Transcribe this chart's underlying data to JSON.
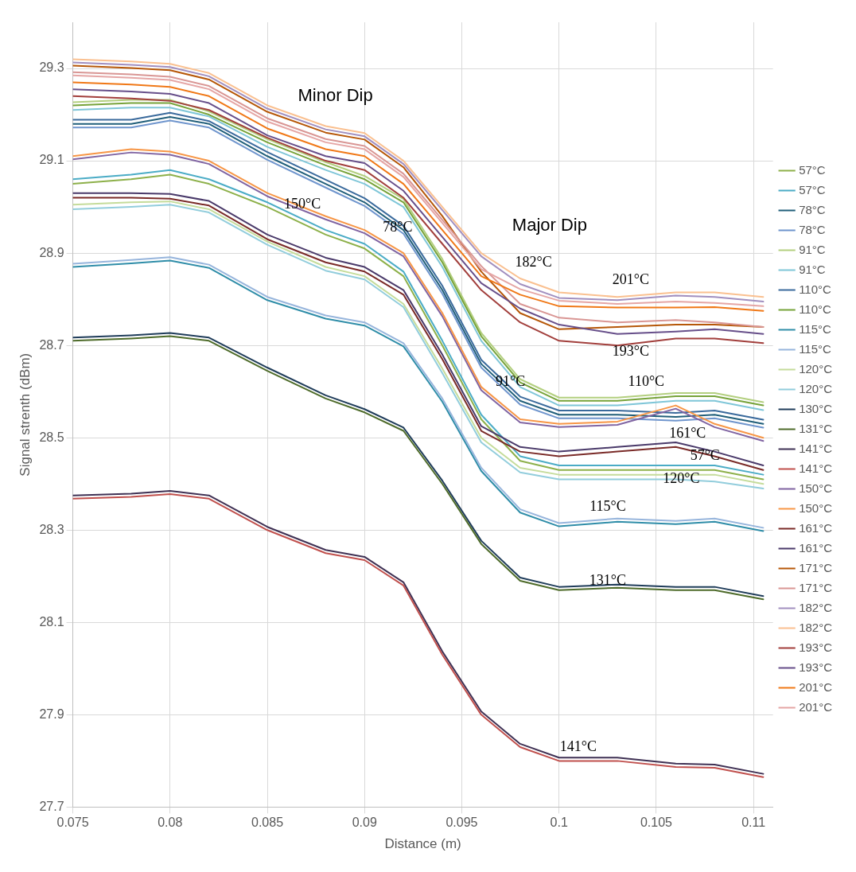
{
  "chart_data": {
    "type": "line",
    "xlabel": "Distance (m)",
    "ylabel": "Signal strenth (dBm)",
    "x": [
      0.075,
      0.078,
      0.08,
      0.082,
      0.085,
      0.088,
      0.09,
      0.092,
      0.094,
      0.096,
      0.098,
      0.1,
      0.103,
      0.106,
      0.108,
      0.1105
    ],
    "xlim": [
      0.075,
      0.111
    ],
    "xticks": [
      0.075,
      0.08,
      0.085,
      0.09,
      0.095,
      0.1,
      0.105,
      0.11
    ],
    "ylim": [
      27.7,
      29.4
    ],
    "yticks": [
      27.7,
      27.9,
      28.1,
      28.3,
      28.5,
      28.7,
      28.9,
      29.1,
      29.3
    ],
    "grid": true,
    "legend": "right",
    "marker": "none",
    "line_style": "solid",
    "series": [
      {
        "name": "57°C",
        "color": "#8db04a",
        "values": [
          29.05,
          29.06,
          29.07,
          29.05,
          29.0,
          28.94,
          28.91,
          28.85,
          28.7,
          28.54,
          28.45,
          28.43,
          28.43,
          28.43,
          28.43,
          28.41
        ]
      },
      {
        "name": "57°C",
        "color": "#4bacc6",
        "values": [
          29.06,
          29.07,
          29.08,
          29.06,
          29.01,
          28.95,
          28.92,
          28.86,
          28.71,
          28.55,
          28.46,
          28.44,
          28.44,
          28.44,
          28.44,
          28.42
        ]
      },
      {
        "name": "78°C",
        "color": "#215f7a",
        "values": [
          29.18,
          29.18,
          29.195,
          29.18,
          29.11,
          29.05,
          29.01,
          28.95,
          28.82,
          28.66,
          28.58,
          28.55,
          28.55,
          28.545,
          28.55,
          28.53
        ]
      },
      {
        "name": "78°C",
        "color": "#6f95cd",
        "values": [
          29.172,
          29.172,
          29.187,
          29.172,
          29.102,
          29.042,
          29.002,
          28.942,
          28.812,
          28.652,
          28.572,
          28.542,
          28.542,
          28.537,
          28.542,
          28.522
        ]
      },
      {
        "name": "91°C",
        "color": "#b3cf7f",
        "values": [
          29.227,
          29.232,
          29.232,
          29.207,
          29.147,
          29.097,
          29.067,
          29.017,
          28.887,
          28.727,
          28.627,
          28.587,
          28.587,
          28.597,
          28.597,
          28.577
        ]
      },
      {
        "name": "91°C",
        "color": "#7fc6d8",
        "values": [
          29.21,
          29.215,
          29.215,
          29.196,
          29.13,
          29.08,
          29.05,
          29.0,
          28.87,
          28.71,
          28.61,
          28.57,
          28.57,
          28.58,
          28.58,
          28.56
        ]
      },
      {
        "name": "110°C",
        "color": "#3a6a9c",
        "values": [
          29.189,
          29.189,
          29.204,
          29.186,
          29.119,
          29.059,
          29.019,
          28.959,
          28.829,
          28.669,
          28.589,
          28.559,
          28.559,
          28.554,
          28.559,
          28.539
        ]
      },
      {
        "name": "110°C",
        "color": "#77a33a",
        "values": [
          29.22,
          29.225,
          29.225,
          29.2,
          29.14,
          29.09,
          29.06,
          29.01,
          28.88,
          28.72,
          28.62,
          28.58,
          28.58,
          28.59,
          28.59,
          28.57
        ]
      },
      {
        "name": "115°C",
        "color": "#2f8da8",
        "values": [
          28.87,
          28.878,
          28.884,
          28.868,
          28.798,
          28.758,
          28.743,
          28.698,
          28.578,
          28.428,
          28.338,
          28.308,
          28.318,
          28.313,
          28.318,
          28.298
        ]
      },
      {
        "name": "115°C",
        "color": "#97b5dc",
        "values": [
          28.877,
          28.885,
          28.891,
          28.875,
          28.805,
          28.765,
          28.75,
          28.705,
          28.585,
          28.435,
          28.345,
          28.315,
          28.325,
          28.32,
          28.325,
          28.305
        ]
      },
      {
        "name": "120°C",
        "color": "#c5dc9b",
        "values": [
          29.005,
          29.01,
          29.012,
          28.995,
          28.925,
          28.87,
          28.85,
          28.79,
          28.65,
          28.5,
          28.435,
          28.42,
          28.42,
          28.42,
          28.42,
          28.4
        ]
      },
      {
        "name": "120°C",
        "color": "#92cddc",
        "values": [
          28.995,
          29.0,
          29.005,
          28.988,
          28.918,
          28.862,
          28.843,
          28.783,
          28.64,
          28.49,
          28.425,
          28.41,
          28.41,
          28.41,
          28.405,
          28.39
        ]
      },
      {
        "name": "130°C",
        "color": "#1f3c5a",
        "values": [
          28.717,
          28.722,
          28.727,
          28.717,
          28.652,
          28.592,
          28.562,
          28.522,
          28.407,
          28.277,
          28.197,
          28.177,
          28.182,
          28.177,
          28.177,
          28.157
        ]
      },
      {
        "name": "131°C",
        "color": "#4e6b2a",
        "values": [
          28.71,
          28.715,
          28.72,
          28.71,
          28.645,
          28.585,
          28.555,
          28.515,
          28.4,
          28.27,
          28.19,
          28.17,
          28.175,
          28.17,
          28.17,
          28.15
        ]
      },
      {
        "name": "141°C",
        "color": "#3f3154",
        "values": [
          28.375,
          28.379,
          28.385,
          28.375,
          28.307,
          28.257,
          28.242,
          28.187,
          28.037,
          27.907,
          27.837,
          27.807,
          27.807,
          27.794,
          27.792,
          27.772
        ]
      },
      {
        "name": "141°C",
        "color": "#c0504d",
        "values": [
          28.368,
          28.372,
          28.378,
          28.368,
          28.3,
          28.25,
          28.235,
          28.18,
          28.03,
          27.9,
          27.83,
          27.8,
          27.8,
          27.787,
          27.785,
          27.765
        ]
      },
      {
        "name": "150°C",
        "color": "#8064a2",
        "values": [
          29.103,
          29.118,
          29.113,
          29.093,
          29.023,
          28.973,
          28.943,
          28.893,
          28.763,
          28.603,
          28.533,
          28.523,
          28.528,
          28.563,
          28.523,
          28.493
        ]
      },
      {
        "name": "150°C",
        "color": "#f79646",
        "values": [
          29.11,
          29.125,
          29.12,
          29.1,
          29.03,
          28.98,
          28.95,
          28.9,
          28.77,
          28.61,
          28.54,
          28.53,
          28.535,
          28.57,
          28.53,
          28.5
        ]
      },
      {
        "name": "161°C",
        "color": "#7a2b28",
        "values": [
          29.02,
          29.02,
          29.018,
          29.003,
          28.93,
          28.88,
          28.86,
          28.81,
          28.67,
          28.515,
          28.47,
          28.46,
          28.47,
          28.48,
          28.46,
          28.43
        ]
      },
      {
        "name": "161°C",
        "color": "#4a3a6a",
        "values": [
          29.03,
          29.03,
          29.028,
          29.013,
          28.94,
          28.89,
          28.87,
          28.82,
          28.68,
          28.525,
          28.48,
          28.47,
          28.48,
          28.49,
          28.47,
          28.44
        ]
      },
      {
        "name": "171°C",
        "color": "#b65708",
        "values": [
          29.306,
          29.301,
          29.296,
          29.276,
          29.206,
          29.161,
          29.146,
          29.086,
          28.98,
          28.86,
          28.77,
          28.735,
          28.74,
          28.745,
          28.745,
          28.74
        ]
      },
      {
        "name": "171°C",
        "color": "#d99694",
        "values": [
          29.292,
          29.287,
          29.282,
          29.262,
          29.192,
          29.147,
          29.132,
          29.072,
          28.972,
          28.872,
          28.79,
          28.76,
          28.75,
          28.755,
          28.75,
          28.74
        ]
      },
      {
        "name": "182°C",
        "color": "#a18fbf",
        "values": [
          29.313,
          29.308,
          29.303,
          29.283,
          29.213,
          29.168,
          29.153,
          29.093,
          28.993,
          28.893,
          28.833,
          28.803,
          28.798,
          28.808,
          28.805,
          28.795
        ]
      },
      {
        "name": "182°C",
        "color": "#fac090",
        "values": [
          29.32,
          29.315,
          29.31,
          29.29,
          29.22,
          29.175,
          29.16,
          29.1,
          29.0,
          28.9,
          28.845,
          28.815,
          28.805,
          28.815,
          28.815,
          28.805
        ]
      },
      {
        "name": "193°C",
        "color": "#a23f3c",
        "values": [
          29.24,
          29.235,
          29.23,
          29.21,
          29.15,
          29.1,
          29.08,
          29.02,
          28.92,
          28.82,
          28.75,
          28.71,
          28.7,
          28.715,
          28.715,
          28.705
        ]
      },
      {
        "name": "193°C",
        "color": "#674f8a",
        "values": [
          29.255,
          29.25,
          29.245,
          29.225,
          29.155,
          29.11,
          29.095,
          29.035,
          28.935,
          28.835,
          28.78,
          28.745,
          28.725,
          28.73,
          28.735,
          28.725
        ]
      },
      {
        "name": "201°C",
        "color": "#f07817",
        "values": [
          29.27,
          29.265,
          29.26,
          29.24,
          29.17,
          29.125,
          29.11,
          29.05,
          28.95,
          28.85,
          28.81,
          28.785,
          28.782,
          28.782,
          28.783,
          28.775
        ]
      },
      {
        "name": "201°C",
        "color": "#e5a6a5",
        "values": [
          29.285,
          29.28,
          29.275,
          29.255,
          29.185,
          29.14,
          29.125,
          29.065,
          28.965,
          28.865,
          28.822,
          28.797,
          28.79,
          28.795,
          28.792,
          28.785
        ]
      }
    ],
    "annotations": [
      "Minor Dip",
      "Major Dip",
      "150°C",
      "78°C",
      "182°C",
      "201°C",
      "193°C",
      "91°C",
      "110°C",
      "161°C",
      "57°C",
      "120°C",
      "115°C",
      "131°C",
      "141°C"
    ]
  }
}
